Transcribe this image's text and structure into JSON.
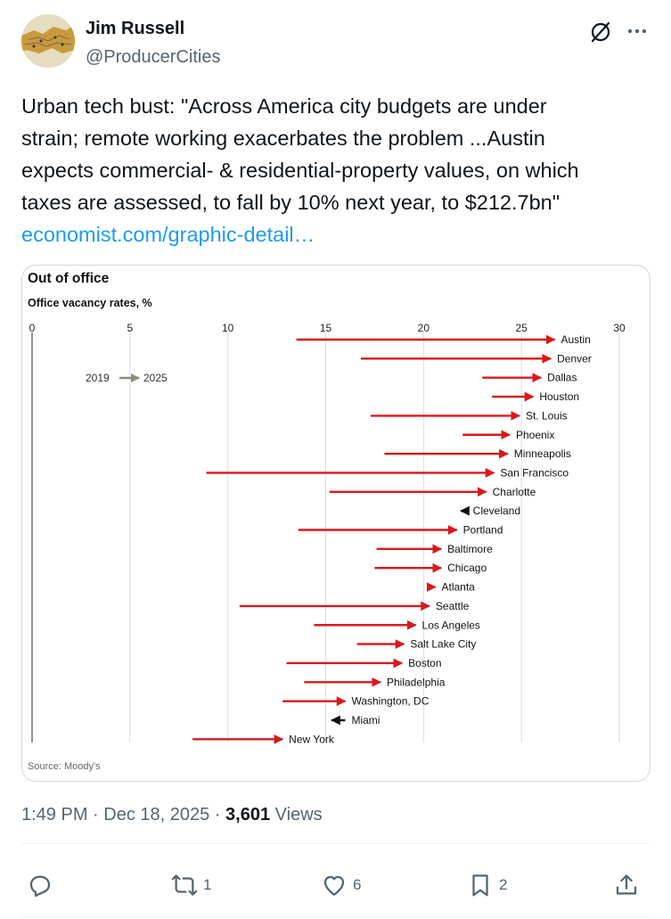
{
  "author": {
    "name": "Jim Russell",
    "handle": "@ProducerCities"
  },
  "tweet": {
    "lines": [
      "Urban tech bust: \"Across America city budgets are under",
      "strain; remote working exacerbates the problem ...Austin",
      "expects commercial- & residential-property values, on which",
      "taxes are assessed, to fall by 10% next year, to $212.7bn\""
    ],
    "link": "economist.com/graphic-detail…"
  },
  "chart_data": {
    "type": "arrow",
    "title": "Out of office",
    "subtitle": "Office vacancy rates, %",
    "x_ticks": [
      "0",
      "5",
      "10",
      "15",
      "20",
      "25",
      "30"
    ],
    "xlim": [
      0,
      30
    ],
    "legend": {
      "from": "2019",
      "to": "2025"
    },
    "source": "Source: Moody's",
    "colors": {
      "increase": "#d7191c",
      "decrease": "#111111",
      "grid": "#dddddd",
      "legend_arrow": "#8c8c7a"
    },
    "series": [
      {
        "city": "Austin",
        "from": 13.5,
        "to": 26.7
      },
      {
        "city": "Denver",
        "from": 16.8,
        "to": 26.5
      },
      {
        "city": "Dallas",
        "from": 23.0,
        "to": 26.0
      },
      {
        "city": "Houston",
        "from": 23.5,
        "to": 25.6
      },
      {
        "city": "St. Louis",
        "from": 17.3,
        "to": 24.9
      },
      {
        "city": "Phoenix",
        "from": 22.0,
        "to": 24.4
      },
      {
        "city": "Minneapolis",
        "from": 18.0,
        "to": 24.3
      },
      {
        "city": "San Francisco",
        "from": 8.9,
        "to": 23.6
      },
      {
        "city": "Charlotte",
        "from": 15.2,
        "to": 23.2
      },
      {
        "city": "Cleveland",
        "from": 22.2,
        "to": 21.9
      },
      {
        "city": "Portland",
        "from": 13.6,
        "to": 21.7
      },
      {
        "city": "Baltimore",
        "from": 17.6,
        "to": 20.9
      },
      {
        "city": "Chicago",
        "from": 17.5,
        "to": 20.9
      },
      {
        "city": "Atlanta",
        "from": 20.2,
        "to": 20.6
      },
      {
        "city": "Seattle",
        "from": 10.6,
        "to": 20.3
      },
      {
        "city": "Los Angeles",
        "from": 14.4,
        "to": 19.6
      },
      {
        "city": "Salt Lake City",
        "from": 16.6,
        "to": 19.0
      },
      {
        "city": "Boston",
        "from": 13.0,
        "to": 18.9
      },
      {
        "city": "Philadelphia",
        "from": 13.9,
        "to": 17.8
      },
      {
        "city": "Washington, DC",
        "from": 12.8,
        "to": 16.0
      },
      {
        "city": "Miami",
        "from": 16.0,
        "to": 15.3
      },
      {
        "city": "New York",
        "from": 8.2,
        "to": 12.8
      }
    ]
  },
  "meta": {
    "time": "1:49 PM",
    "date": "Dec 18, 2025",
    "views_count": "3,601",
    "views_label": "Views"
  },
  "actions": {
    "reply_count": "",
    "retweet_count": "1",
    "like_count": "6",
    "bookmark_count": "2"
  }
}
